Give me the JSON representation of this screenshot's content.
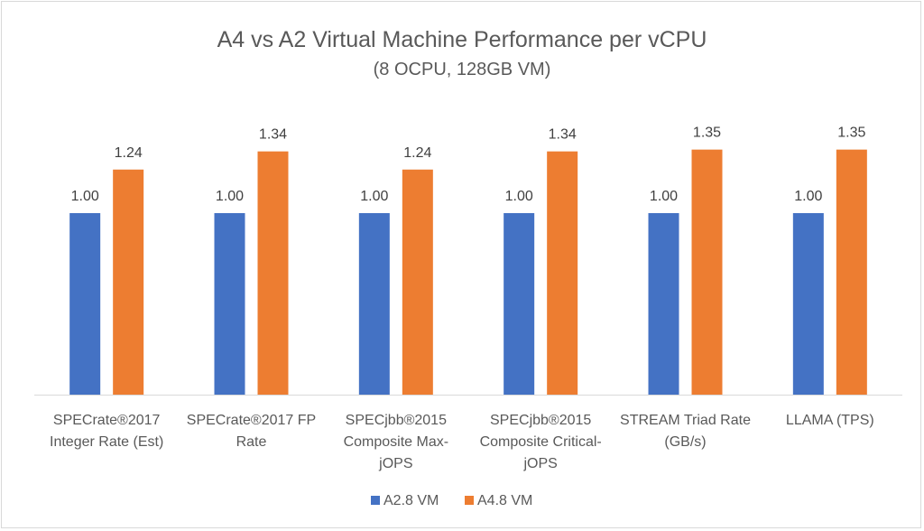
{
  "chart_data": {
    "type": "bar",
    "title": "A4 vs A2 Virtual Machine Performance per vCPU",
    "subtitle": "(8 OCPU, 128GB VM)",
    "xlabel": "",
    "ylabel": "",
    "ylim": [
      0,
      1.0
    ],
    "grid": false,
    "legend_position": "bottom",
    "categories": [
      [
        "SPECrate®2017",
        "Integer Rate (Est)"
      ],
      [
        "SPECrate®2017 FP",
        "Rate"
      ],
      [
        "SPECjbb®2015",
        "Composite Max-",
        "jOPS"
      ],
      [
        "SPECjbb®2015",
        "Composite Critical-",
        "jOPS"
      ],
      [
        "STREAM Triad Rate",
        "(GB/s)"
      ],
      [
        "LLAMA (TPS)"
      ]
    ],
    "series": [
      {
        "name": "A2.8 VM",
        "color": "#4472c4",
        "values": [
          1.0,
          1.0,
          1.0,
          1.0,
          1.0,
          1.0
        ],
        "labels": [
          "1.00",
          "1.00",
          "1.00",
          "1.00",
          "1.00",
          "1.00"
        ]
      },
      {
        "name": "A4.8 VM",
        "color": "#ed7d31",
        "values": [
          1.24,
          1.34,
          1.24,
          1.34,
          1.35,
          1.35
        ],
        "labels": [
          "1.24",
          "1.34",
          "1.24",
          "1.34",
          "1.35",
          "1.35"
        ]
      }
    ]
  }
}
